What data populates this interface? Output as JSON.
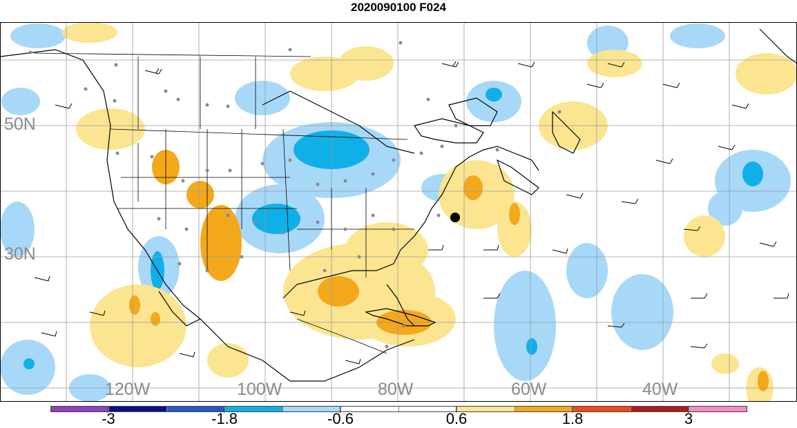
{
  "title": "2020090100 F024",
  "latitude_labels": [
    "50N",
    "30N"
  ],
  "longitude_labels": [
    "120W",
    "100W",
    "80W",
    "60W",
    "40W"
  ],
  "colorbar": {
    "colors": [
      "#8e3fc4",
      "#0a0f87",
      "#2f54c9",
      "#0fb0e8",
      "#a8d8f8",
      "#ffffff",
      "#ffffff",
      "#fbe591",
      "#f4a81c",
      "#f04a1b",
      "#b01a1a",
      "#f78cc0"
    ],
    "tick_labels": [
      "-3",
      "-1.8",
      "-0.6",
      "0.6",
      "1.8",
      "3"
    ]
  },
  "map_colors": {
    "positive_light": "#fbe591",
    "positive_strong": "#f4a81c",
    "negative_light": "#a8d8f8",
    "negative_strong": "#0fb0e8",
    "grid": "#9a9a9a",
    "station_dot": "#8a8a8a"
  }
}
